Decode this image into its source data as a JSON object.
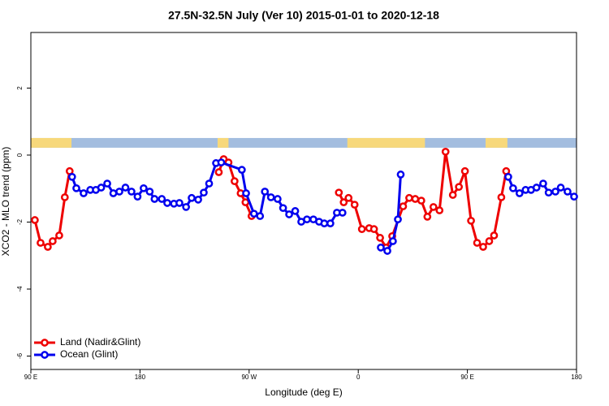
{
  "chart_data": {
    "type": "line",
    "title": "27.5N-32.5N July (Ver 10)   2015-01-01 to 2020-12-18",
    "xlabel": "Longitude (deg E)",
    "ylabel": "XCO2 - MLO trend (ppm)",
    "xlim": [
      90,
      540
    ],
    "ylim": [
      -6.4,
      3.66
    ],
    "xticks": [
      {
        "value": 90,
        "label": "90 E"
      },
      180,
      {
        "value": 270,
        "label": "90 W"
      },
      {
        "value": 360,
        "label": "0"
      },
      {
        "value": 450,
        "label": "90 E"
      },
      {
        "value": 540,
        "label": "180"
      }
    ],
    "yticks": [
      -6,
      -4,
      -2,
      0,
      2
    ],
    "legend": "bottom-left",
    "mask": {
      "ylim": [
        0.22,
        0.51
      ],
      "ocean_color": "#a3bddf",
      "land_color": "#f7d87b",
      "land": [
        [
          90,
          123.5
        ],
        [
          244,
          253
        ],
        [
          351,
          415
        ],
        [
          465,
          483
        ]
      ]
    },
    "series": [
      {
        "name": "Land (Nadir&Glint)",
        "color": "#ee0000",
        "x": [
          93.3,
          98,
          104,
          108,
          113.4,
          118,
          122,
          123,
          245,
          249,
          253,
          258,
          263,
          267,
          272,
          300,
          344,
          348,
          352,
          357,
          363,
          369,
          373,
          378,
          383,
          388,
          397,
          402,
          407,
          412,
          417,
          422,
          427,
          432,
          438,
          443,
          448,
          453,
          458,
          463,
          468,
          472,
          478,
          482
        ],
        "values": [
          -1.94,
          -2.62,
          -2.74,
          -2.57,
          -2.4,
          -1.26,
          -0.48,
          null,
          -0.51,
          -0.12,
          -0.22,
          -0.78,
          -1.14,
          -1.41,
          -1.82,
          null,
          -1.12,
          -1.41,
          -1.28,
          -1.48,
          -2.21,
          -2.18,
          -2.21,
          -2.47,
          -2.76,
          -2.42,
          -1.53,
          -1.28,
          -1.31,
          -1.36,
          -1.84,
          -1.55,
          -1.65,
          0.1,
          -1.19,
          -0.95,
          -0.48,
          -1.96,
          -2.62,
          -2.74,
          -2.57,
          -2.4,
          -1.26,
          -0.48
        ]
      },
      {
        "name": "Ocean (Glint)",
        "color": "#0000ee",
        "x": [
          124,
          127.5,
          133.5,
          139,
          143.6,
          148,
          153,
          158,
          163,
          168,
          173,
          178,
          183,
          188,
          192,
          198,
          202.5,
          208,
          212.5,
          218,
          222.6,
          228,
          232.6,
          237,
          242.7,
          247,
          264,
          267.5,
          274,
          279,
          283,
          288,
          293.5,
          298,
          303,
          308,
          313,
          317.7,
          323,
          327.7,
          332,
          337,
          342.4,
          347,
          360,
          378.6,
          384,
          388.6,
          392.7,
          395,
          440,
          483.7,
          487.7,
          493,
          498,
          502.5,
          507,
          512.5,
          517,
          522.6,
          527,
          532.6,
          538
        ],
        "values": [
          -0.65,
          -0.99,
          -1.14,
          -1.04,
          -1.04,
          -0.97,
          -0.85,
          -1.14,
          -1.09,
          -0.97,
          -1.09,
          -1.24,
          -0.99,
          -1.09,
          -1.31,
          -1.31,
          -1.43,
          -1.45,
          -1.43,
          -1.55,
          -1.28,
          -1.33,
          -1.12,
          -0.85,
          -0.24,
          -0.22,
          -0.44,
          -1.14,
          -1.75,
          -1.82,
          -1.09,
          -1.26,
          -1.31,
          -1.58,
          -1.77,
          -1.67,
          -1.99,
          -1.92,
          -1.92,
          -1.99,
          -2.04,
          -2.04,
          -1.72,
          -1.72,
          null,
          -2.76,
          -2.86,
          -2.57,
          -1.92,
          -0.58,
          null,
          -0.65,
          -0.99,
          -1.14,
          -1.04,
          -1.04,
          -0.97,
          -0.85,
          -1.12,
          -1.09,
          -0.97,
          -1.09,
          -1.24
        ]
      }
    ]
  }
}
